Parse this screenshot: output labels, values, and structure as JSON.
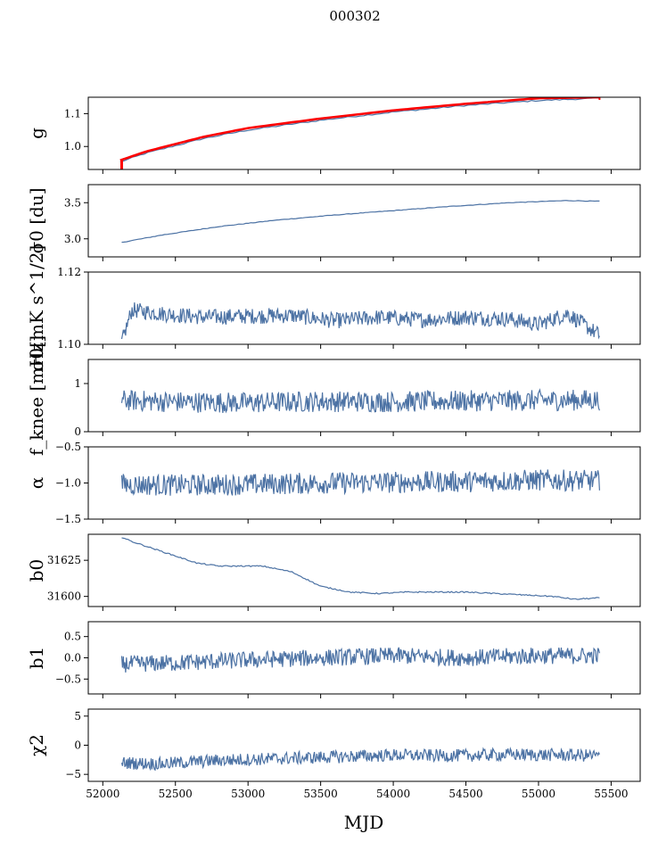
{
  "title": "000302",
  "xlabel": "MJD",
  "colors": {
    "series": "#4c72a4",
    "highlight": "#ff0000",
    "frame": "#000000"
  },
  "x_axis": {
    "range": [
      51900,
      55700
    ],
    "ticks": [
      52000,
      52500,
      53000,
      53500,
      54000,
      54500,
      55000,
      55500
    ],
    "tick_labels": [
      "52000",
      "52500",
      "53000",
      "53500",
      "54000",
      "54500",
      "55000",
      "55500"
    ]
  },
  "chart_data": [
    {
      "type": "line",
      "ylabel": "g",
      "yrange": [
        0.93,
        1.15
      ],
      "yticks": [
        1.0,
        1.1
      ],
      "ytick_labels": [
        "1.0",
        "1.1"
      ],
      "series": [
        {
          "x": [
            52120,
            52300,
            52700,
            53000,
            53500,
            54000,
            54500,
            55000,
            55420
          ],
          "y": [
            0.953,
            0.98,
            1.025,
            1.05,
            1.08,
            1.105,
            1.125,
            1.14,
            1.147
          ],
          "color": "#4c72a4"
        },
        {
          "x": [
            52120,
            52300,
            52700,
            53000,
            53500,
            54000,
            54500,
            55000,
            55420
          ],
          "y": [
            0.958,
            0.985,
            1.03,
            1.056,
            1.085,
            1.11,
            1.13,
            1.147,
            1.15
          ],
          "color": "#ff0000"
        }
      ]
    },
    {
      "type": "line",
      "ylabel": "σ0 [du]",
      "yrange": [
        2.75,
        3.75
      ],
      "yticks": [
        3.0,
        3.5
      ],
      "ytick_labels": [
        "3.0",
        "3.5"
      ],
      "series": [
        {
          "x": [
            52130,
            52400,
            52800,
            53200,
            53600,
            54000,
            54400,
            54800,
            55200,
            55420
          ],
          "y": [
            2.95,
            3.05,
            3.17,
            3.26,
            3.33,
            3.39,
            3.45,
            3.5,
            3.53,
            3.52
          ],
          "color": "#4c72a4"
        }
      ]
    },
    {
      "type": "line",
      "ylabel": "σ0[mK s^1/2]",
      "yrange": [
        1.1,
        1.12
      ],
      "yticks": [
        1.1,
        1.12
      ],
      "ytick_labels": [
        "1.10",
        "1.12"
      ],
      "series": [
        {
          "x": [
            52130,
            52200,
            52400,
            52700,
            53000,
            53300,
            53600,
            53900,
            54200,
            54500,
            54800,
            55000,
            55200,
            55420
          ],
          "y": [
            1.1005,
            1.1095,
            1.1085,
            1.1075,
            1.1078,
            1.108,
            1.1065,
            1.1075,
            1.1068,
            1.1075,
            1.107,
            1.1055,
            1.1085,
            1.1025
          ],
          "color": "#4c72a4"
        }
      ]
    },
    {
      "type": "line",
      "ylabel": "f_knee [mHz]",
      "yrange": [
        0.0,
        1.5
      ],
      "yticks": [
        0,
        1
      ],
      "ytick_labels": [
        "0",
        "1"
      ],
      "series": [
        {
          "x": [
            52130,
            52500,
            53000,
            53500,
            54000,
            54500,
            55000,
            55420
          ],
          "y": [
            0.65,
            0.62,
            0.6,
            0.63,
            0.62,
            0.64,
            0.65,
            0.66
          ],
          "color": "#4c72a4"
        }
      ]
    },
    {
      "type": "line",
      "ylabel": "α",
      "yrange": [
        -1.5,
        -0.5
      ],
      "yticks": [
        -1.5,
        -1.0,
        -0.5
      ],
      "ytick_labels": [
        "−1.5",
        "−1.0",
        "−0.5"
      ],
      "series": [
        {
          "x": [
            52130,
            52500,
            53000,
            53500,
            54000,
            54500,
            55000,
            55420
          ],
          "y": [
            -1.02,
            -1.03,
            -1.02,
            -1.0,
            -0.99,
            -0.98,
            -0.96,
            -0.97
          ],
          "color": "#4c72a4"
        }
      ]
    },
    {
      "type": "line",
      "ylabel": "b0",
      "yrange": [
        31593,
        31643
      ],
      "yticks": [
        31600,
        31625
      ],
      "ytick_labels": [
        "31600",
        "31625"
      ],
      "series": [
        {
          "x": [
            52130,
            52200,
            52350,
            52500,
            52650,
            52800,
            53100,
            53300,
            53500,
            53700,
            53900,
            54100,
            54300,
            54500,
            54700,
            54900,
            55100,
            55250,
            55420
          ],
          "y": [
            31641,
            31638,
            31633,
            31628,
            31623,
            31621,
            31621,
            31617,
            31607,
            31603,
            31602,
            31603,
            31603,
            31603,
            31602,
            31601,
            31600,
            31598,
            31599
          ],
          "color": "#4c72a4"
        }
      ]
    },
    {
      "type": "line",
      "ylabel": "b1",
      "yrange": [
        -0.85,
        0.85
      ],
      "yticks": [
        -0.5,
        0.0,
        0.5
      ],
      "ytick_labels": [
        "−0.5",
        "0.0",
        "0.5"
      ],
      "series": [
        {
          "x": [
            52130,
            52500,
            53000,
            53500,
            54000,
            54500,
            55000,
            55420
          ],
          "y": [
            -0.15,
            -0.12,
            -0.05,
            0.0,
            0.05,
            0.0,
            0.05,
            0.05
          ],
          "color": "#4c72a4"
        }
      ]
    },
    {
      "type": "line",
      "ylabel": "χ2",
      "yrange": [
        -6.2,
        6.2
      ],
      "yticks": [
        -5,
        0,
        5
      ],
      "ytick_labels": [
        "−5",
        "0",
        "5"
      ],
      "series": [
        {
          "x": [
            52130,
            52400,
            52800,
            53200,
            53600,
            54000,
            54400,
            54800,
            55200,
            55420
          ],
          "y": [
            -3.0,
            -3.2,
            -2.6,
            -2.3,
            -2.0,
            -1.7,
            -1.8,
            -1.6,
            -1.7,
            -1.8
          ],
          "color": "#4c72a4"
        }
      ]
    }
  ]
}
